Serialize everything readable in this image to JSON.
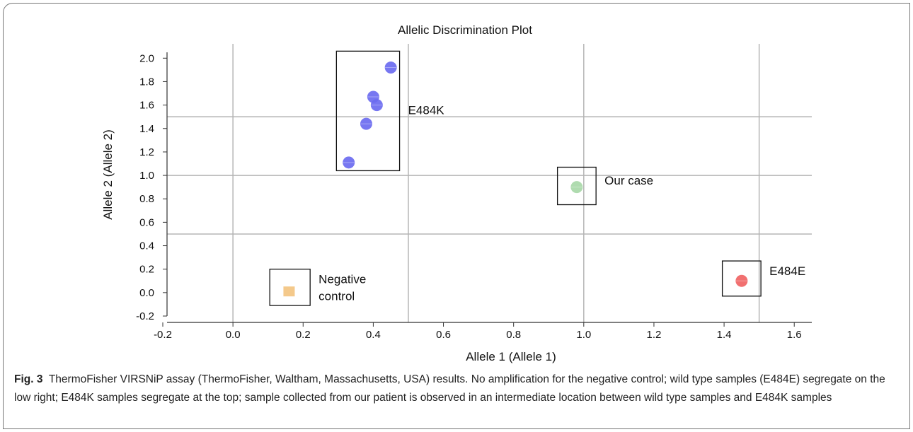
{
  "chart_data": {
    "type": "scatter",
    "title": "Allelic Discrimination Plot",
    "xlabel": "Allele 1 (Allele 1)",
    "ylabel": "Allele 2 (Allele 2)",
    "xlim": [
      -0.2,
      1.65
    ],
    "ylim": [
      -0.2,
      2.05
    ],
    "x_ticks": [
      "-0.2",
      "0.0",
      "0.2",
      "0.4",
      "0.6",
      "0.8",
      "1.0",
      "1.2",
      "1.4",
      "1.6"
    ],
    "y_ticks": [
      "-0.2",
      "0.0",
      "0.2",
      "0.4",
      "0.6",
      "0.8",
      "1.0",
      "1.2",
      "1.4",
      "1.6",
      "1.8",
      "2.0"
    ],
    "grid": {
      "vertical": [
        0,
        0.5,
        1.0,
        1.5
      ],
      "horizontal": [
        0.5,
        1.0,
        1.5
      ]
    },
    "series": [
      {
        "color": "#6b6bf0",
        "marker": "circle",
        "points": [
          [
            0.45,
            1.92
          ],
          [
            0.4,
            1.67
          ],
          [
            0.41,
            1.6
          ],
          [
            0.38,
            1.44
          ],
          [
            0.33,
            1.11
          ]
        ]
      },
      {
        "color": "#a8d8a8",
        "marker": "circle",
        "points": [
          [
            0.98,
            0.9
          ]
        ]
      },
      {
        "color": "#f06464",
        "marker": "circle",
        "points": [
          [
            1.45,
            0.1
          ]
        ]
      },
      {
        "color": "#f2c077",
        "marker": "square",
        "points": [
          [
            0.16,
            0.01
          ]
        ]
      }
    ],
    "annotations": [
      {
        "text": "E484K",
        "box": {
          "x": [
            0.295,
            0.475
          ],
          "y": [
            1.04,
            2.06
          ]
        }
      },
      {
        "text": "Our case",
        "box": {
          "x": [
            0.925,
            1.035
          ],
          "y": [
            0.75,
            1.07
          ]
        }
      },
      {
        "text": "E484E",
        "box": {
          "x": [
            1.395,
            1.505
          ],
          "y": [
            -0.03,
            0.27
          ]
        }
      },
      {
        "text": "Negative\ncontrol",
        "box": {
          "x": [
            0.105,
            0.22
          ],
          "y": [
            -0.11,
            0.2
          ]
        }
      }
    ]
  },
  "caption": {
    "label": "Fig. 3",
    "text": "ThermoFisher VIRSNiP assay (ThermoFisher, Waltham, Massachusetts, USA) results. No amplification for the negative control; wild type samples (E484E) segregate on the low right; E484K samples segregate at the top; sample collected from our patient is observed in an intermediate location between wild type samples and E484K samples"
  }
}
